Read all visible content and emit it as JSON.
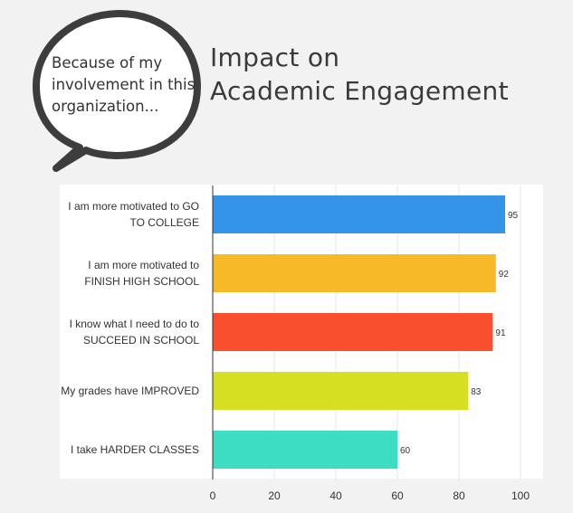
{
  "callout": {
    "lines": [
      "Because of my",
      "involvement in this",
      "organization..."
    ]
  },
  "title": {
    "line1": "Impact on",
    "line2": "Academic Engagement"
  },
  "chart_data": {
    "type": "bar",
    "orientation": "horizontal",
    "categories": [
      [
        "I am more motivated to GO",
        "TO COLLEGE"
      ],
      [
        "I am more motivated to",
        "FINISH HIGH SCHOOL"
      ],
      [
        "I know what I need to do to",
        "SUCCEED IN SCHOOL"
      ],
      [
        "My grades have IMPROVED"
      ],
      [
        "I take HARDER CLASSES"
      ]
    ],
    "values": [
      95,
      92,
      91,
      83,
      60
    ],
    "colors": [
      "#3394e8",
      "#f7b928",
      "#fa4f2e",
      "#d6df22",
      "#3cddc2"
    ],
    "xlim": [
      0,
      100
    ],
    "xticks": [
      0,
      20,
      40,
      60,
      80,
      100
    ],
    "grid": true,
    "show_value_labels": true
  }
}
